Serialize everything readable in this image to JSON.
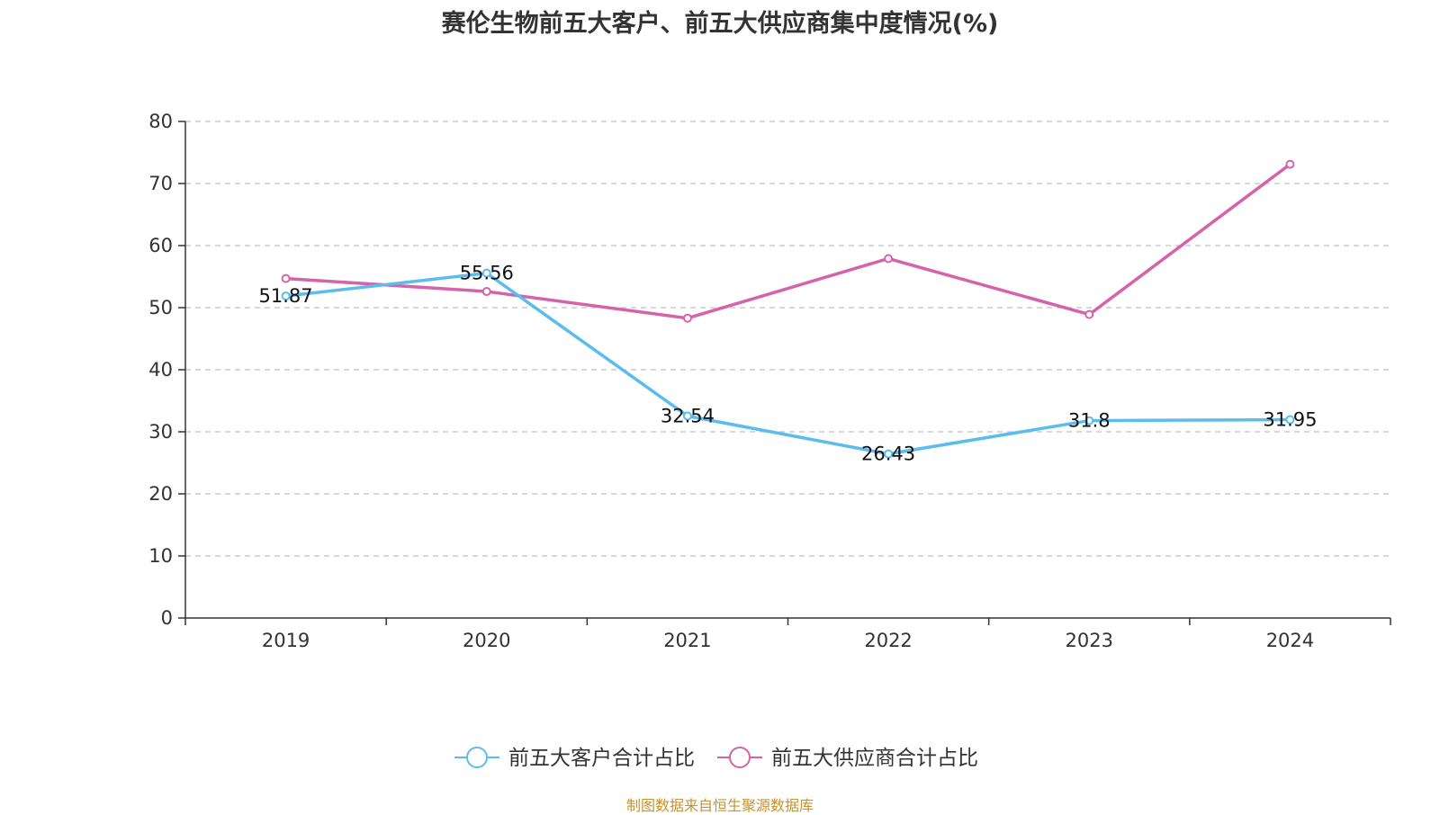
{
  "chart_data": {
    "type": "line",
    "title": "赛伦生物前五大客户、前五大供应商集中度情况(%)",
    "categories": [
      "2019",
      "2020",
      "2021",
      "2022",
      "2023",
      "2024"
    ],
    "series": [
      {
        "name": "前五大客户合计占比",
        "color": "#5bbcee",
        "values": [
          51.87,
          55.56,
          32.54,
          26.43,
          31.8,
          31.95
        ],
        "show_labels": true
      },
      {
        "name": "前五大供应商合计占比",
        "color": "#d563a9",
        "values": [
          54.7,
          52.6,
          48.3,
          57.9,
          48.9,
          73.1
        ],
        "show_labels": false
      }
    ],
    "ylim": [
      0,
      80
    ],
    "yticks": [
      0,
      10,
      20,
      30,
      40,
      50,
      60,
      70,
      80
    ],
    "grid": "horizontal-dashed",
    "legend_position": "bottom-center",
    "xlabel": "",
    "ylabel": ""
  },
  "source_note": "制图数据来自恒生聚源数据库"
}
